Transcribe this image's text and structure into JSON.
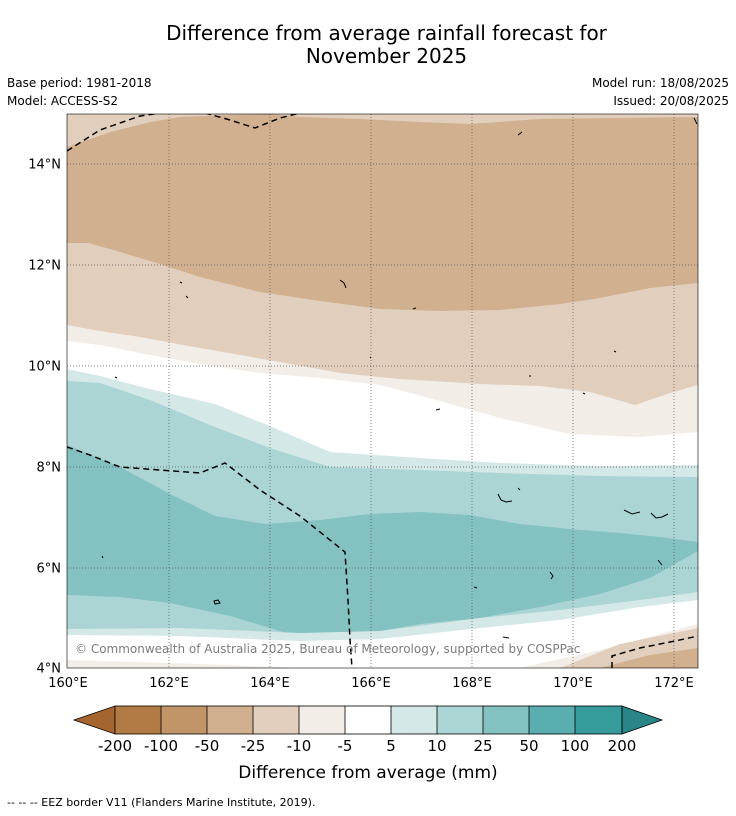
{
  "title_line1": "Difference from average rainfall forecast for",
  "title_line2": "November 2025",
  "base_period": "Base period: 1981-2018",
  "model": "Model: ACCESS-S2",
  "model_run": "Model run: 18/08/2025",
  "issued": "Issued: 20/08/2025",
  "lat_labels": [
    "14°N",
    "12°N",
    "10°N",
    "8°N",
    "6°N",
    "4°N"
  ],
  "lon_labels": [
    "160°E",
    "162°E",
    "164°E",
    "166°E",
    "168°E",
    "170°E",
    "172°E"
  ],
  "copyright": "© Commonwealth of Australia 2025, Bureau of Meteorology, supported by COSPPac",
  "colorbar": {
    "title": "Difference from average (mm)",
    "labels": [
      "-200",
      "-100",
      "-50",
      "-25",
      "-10",
      "-5",
      "5",
      "10",
      "25",
      "50",
      "100",
      "200"
    ],
    "colors": {
      "below_-200": "#a5652f",
      "-200_-100": "#b27a44",
      "-100_-50": "#c29569",
      "-50_-25": "#d1b090",
      "-25_-10": "#e1cebc",
      "-10_-5": "#f2ede7",
      "-5_5": "#ffffff",
      "5_10": "#d4e8e7",
      "10_25": "#abd5d5",
      "25_50": "#84c1c1",
      "50_100": "#5aaeaf",
      "100_200": "#359c9b",
      "above_200": "#2a8686"
    }
  },
  "footnote": "--  --  -- EEZ border V11 (Flanders Marine Institute, 2019)."
}
